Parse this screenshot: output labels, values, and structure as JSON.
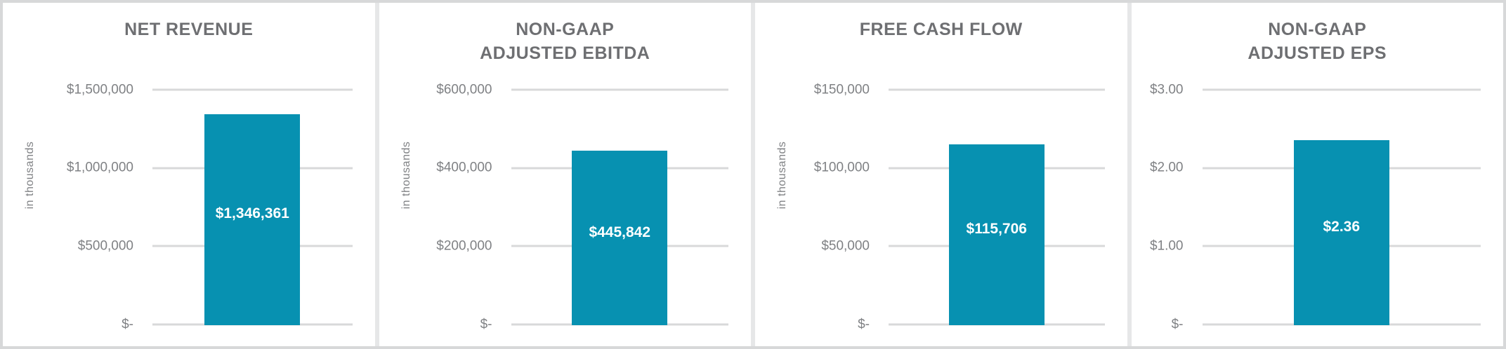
{
  "colors": {
    "bar": "#0791b1",
    "title_text": "#6e6f72",
    "axis_text": "#7f8184",
    "gridline": "#d8d9da",
    "bar_label_text": "#ffffff",
    "panel_background": "#ffffff",
    "frame_border": "#d7d8d9"
  },
  "chart_data": [
    {
      "type": "bar",
      "title": "NET REVENUE",
      "title_lines": [
        "NET REVENUE"
      ],
      "ylabel": "in thousands",
      "categories": [
        ""
      ],
      "values": [
        1346361
      ],
      "bar_label": "$1,346,361",
      "ylim": [
        0,
        1500000
      ],
      "yticks_top_to_bottom": [
        "$1,500,000",
        "$1,000,000",
        "$500,000",
        "$-"
      ],
      "grid": true,
      "legend": false
    },
    {
      "type": "bar",
      "title": "NON-GAAP ADJUSTED EBITDA",
      "title_lines": [
        "NON-GAAP",
        "ADJUSTED EBITDA"
      ],
      "ylabel": "in thousands",
      "categories": [
        ""
      ],
      "values": [
        445842
      ],
      "bar_label": "$445,842",
      "ylim": [
        0,
        600000
      ],
      "yticks_top_to_bottom": [
        "$600,000",
        "$400,000",
        "$200,000",
        "$-"
      ],
      "grid": true,
      "legend": false
    },
    {
      "type": "bar",
      "title": "FREE CASH FLOW",
      "title_lines": [
        "FREE CASH FLOW"
      ],
      "ylabel": "in thousands",
      "categories": [
        ""
      ],
      "values": [
        115706
      ],
      "bar_label": "$115,706",
      "ylim": [
        0,
        150000
      ],
      "yticks_top_to_bottom": [
        "$150,000",
        "$100,000",
        "$50,000",
        "$-"
      ],
      "grid": true,
      "legend": false
    },
    {
      "type": "bar",
      "title": "NON-GAAP ADJUSTED EPS",
      "title_lines": [
        "NON-GAAP",
        "ADJUSTED EPS"
      ],
      "ylabel": "",
      "categories": [
        ""
      ],
      "values": [
        2.36
      ],
      "bar_label": "$2.36",
      "ylim": [
        0,
        3
      ],
      "yticks_top_to_bottom": [
        "$3.00",
        "$2.00",
        "$1.00",
        "$-"
      ],
      "grid": true,
      "legend": false
    }
  ]
}
